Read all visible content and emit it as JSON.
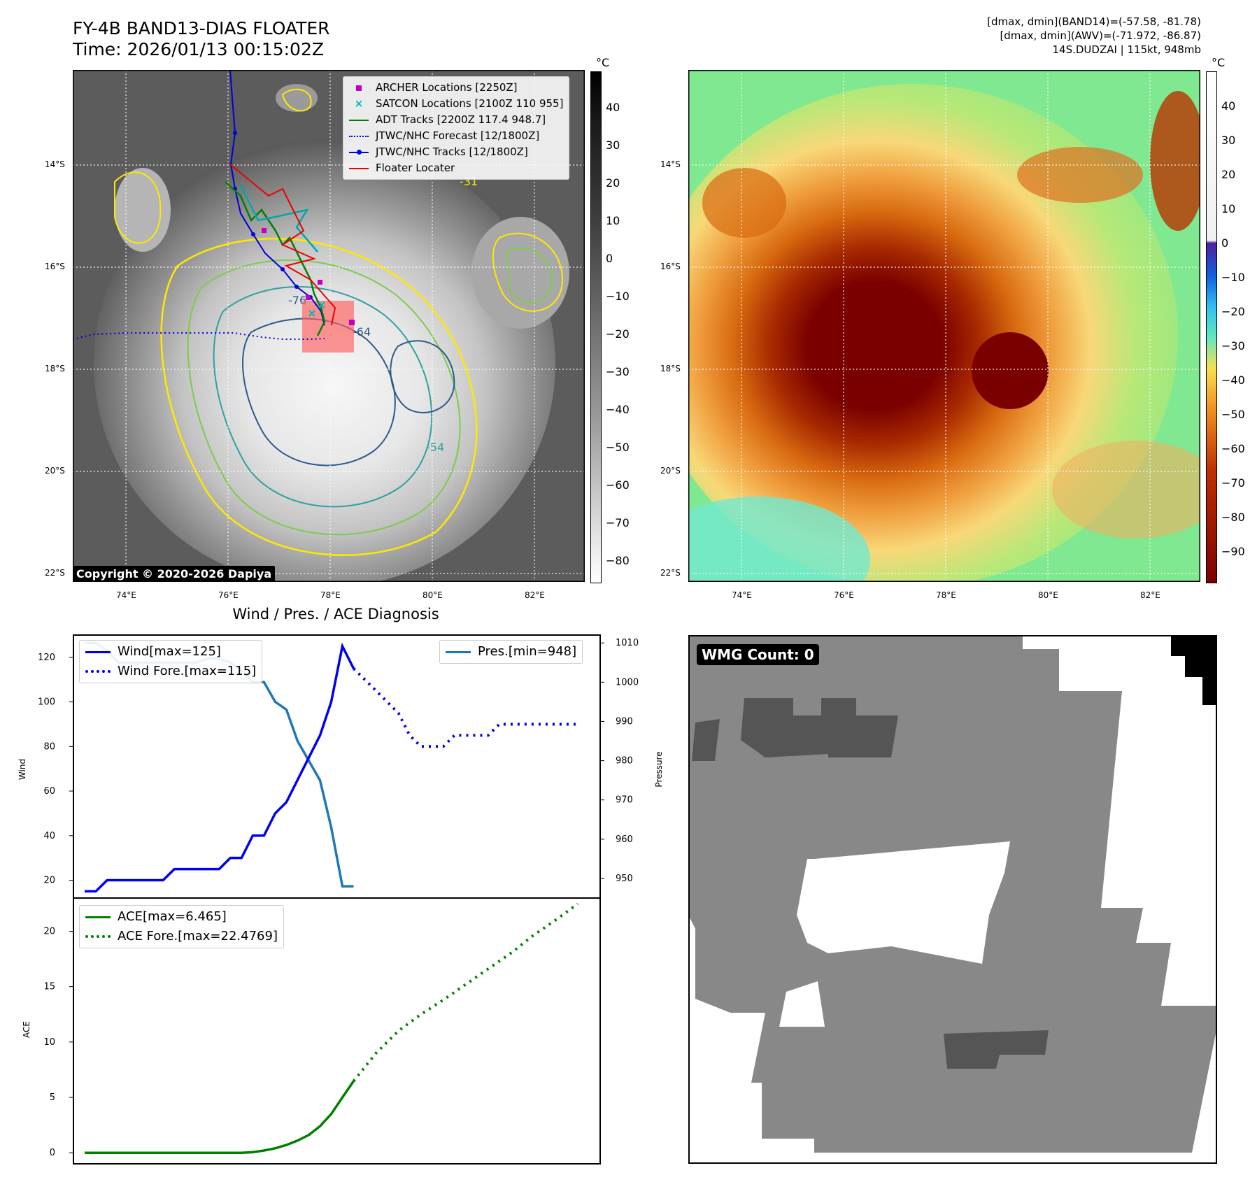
{
  "header": {
    "title_line1": "FY-4B BAND13-DIAS FLOATER",
    "title_line2": "Time: 2026/01/13 00:15:02Z",
    "info_line1": "[dmax, dmin](BAND14)=(-57.58, -81.78)",
    "info_line2": "[dmax, dmin](AWV)=(-71.972, -86.87)",
    "info_line3": "14S.DUDZAI | 115kt, 948mb"
  },
  "map": {
    "lat_labels": [
      "14°S",
      "16°S",
      "18°S",
      "20°S",
      "22°S"
    ],
    "lon_labels": [
      "74°E",
      "76°E",
      "78°E",
      "80°E",
      "82°E"
    ],
    "copyright": "Copyright © 2020-2026 Dapiya",
    "contour_labels": [
      "-31",
      "-54",
      "-64",
      "-76"
    ],
    "legend": [
      {
        "label": "ARCHER Locations [2250Z]",
        "color": "#c000c0",
        "marker": "square"
      },
      {
        "label": "SATCON Locations [2100Z 110 955]",
        "color": "#00b8b8",
        "marker": "x"
      },
      {
        "label": "ADT Tracks [2200Z 117.4 948.7]",
        "color": "#008000",
        "marker": "line"
      },
      {
        "label": "JTWC/NHC Forecast [12/1800Z]",
        "color": "#0000dd",
        "marker": "dotted"
      },
      {
        "label": "JTWC/NHC Tracks [12/1800Z]",
        "color": "#0000dd",
        "marker": "line-dot"
      },
      {
        "label": "Floater Locater",
        "color": "#ee0000",
        "marker": "line"
      }
    ]
  },
  "colorbars": {
    "unit": "°C",
    "gray_ticks": [
      "40",
      "30",
      "20",
      "10",
      "0",
      "−10",
      "−20",
      "−30",
      "−40",
      "−50",
      "−60",
      "−70",
      "−80"
    ],
    "color_ticks": [
      "40",
      "30",
      "20",
      "10",
      "0",
      "−10",
      "−20",
      "−30",
      "−40",
      "−50",
      "−60",
      "−70",
      "−80",
      "−90"
    ]
  },
  "diagnosis": {
    "title": "Wind / Pres. / ACE Diagnosis",
    "wind_ylabel": "Wind",
    "pres_ylabel": "Pressure",
    "ace_ylabel": "ACE",
    "wind_ticks": [
      "120",
      "100",
      "80",
      "60",
      "40",
      "20"
    ],
    "pres_ticks": [
      "1010",
      "1000",
      "990",
      "980",
      "970",
      "960",
      "950"
    ],
    "ace_ticks": [
      "20",
      "15",
      "10",
      "5",
      "0"
    ],
    "legend_wind": "Wind[max=125]",
    "legend_wind_fore": "Wind Fore.[max=115]",
    "legend_pres": "Pres.[min=948]",
    "legend_ace": "ACE[max=6.465]",
    "legend_ace_fore": "ACE Fore.[max=22.4769]"
  },
  "wmg": {
    "label": "WMG Count: 0"
  },
  "chart_data": [
    {
      "type": "line",
      "title": "Wind / Pres. / ACE Diagnosis",
      "ylabel": "Wind",
      "ylim": [
        12,
        130
      ],
      "series": [
        {
          "name": "Wind[max=125]",
          "x": [
            0,
            1,
            2,
            3,
            4,
            5,
            6,
            7,
            8,
            9,
            10,
            11,
            12,
            13,
            14,
            15,
            16,
            17,
            18,
            19,
            20,
            21,
            22,
            23,
            24
          ],
          "values": [
            15,
            15,
            20,
            20,
            20,
            20,
            20,
            20,
            25,
            25,
            25,
            25,
            25,
            30,
            30,
            40,
            40,
            50,
            55,
            65,
            75,
            85,
            100,
            125,
            115
          ]
        },
        {
          "name": "Wind Fore.[max=115]",
          "x": [
            24,
            25,
            26,
            27,
            28,
            29,
            30,
            31,
            32,
            33,
            34,
            35,
            36,
            37,
            38,
            39,
            40,
            41,
            42,
            43,
            44
          ],
          "values": [
            115,
            110,
            105,
            100,
            95,
            85,
            80,
            80,
            80,
            85,
            85,
            85,
            85,
            90,
            90,
            90,
            90,
            90,
            90,
            90,
            90
          ]
        }
      ]
    },
    {
      "type": "line",
      "ylabel": "Pressure",
      "ylim": [
        945,
        1012
      ],
      "series": [
        {
          "name": "Pres.[min=948]",
          "x": [
            0,
            1,
            2,
            3,
            4,
            5,
            6,
            7,
            8,
            9,
            10,
            11,
            12,
            13,
            14,
            15,
            16,
            17,
            18,
            19,
            20,
            21,
            22,
            23,
            24
          ],
          "values": [
            1010,
            1010,
            1008,
            1005,
            1005,
            1005,
            1005,
            1005,
            1005,
            1005,
            1005,
            1006,
            1006,
            1005,
            1003,
            1000,
            1000,
            995,
            993,
            985,
            980,
            975,
            963,
            948,
            948
          ]
        }
      ]
    },
    {
      "type": "line",
      "ylabel": "ACE",
      "ylim": [
        -1,
        23
      ],
      "series": [
        {
          "name": "ACE[max=6.465]",
          "x": [
            0,
            2,
            4,
            6,
            8,
            10,
            12,
            14,
            15,
            16,
            17,
            18,
            19,
            20,
            21,
            22,
            23,
            24
          ],
          "values": [
            0,
            0,
            0,
            0,
            0,
            0,
            0,
            0,
            0.05,
            0.2,
            0.4,
            0.7,
            1.1,
            1.6,
            2.4,
            3.5,
            5.0,
            6.465
          ]
        },
        {
          "name": "ACE Fore.[max=22.4769]",
          "x": [
            24,
            26,
            28,
            30,
            32,
            34,
            36,
            38,
            40,
            42,
            44
          ],
          "values": [
            6.465,
            9.0,
            11.0,
            12.5,
            13.8,
            15.2,
            16.6,
            18.0,
            19.6,
            21.0,
            22.4769
          ]
        }
      ]
    }
  ]
}
